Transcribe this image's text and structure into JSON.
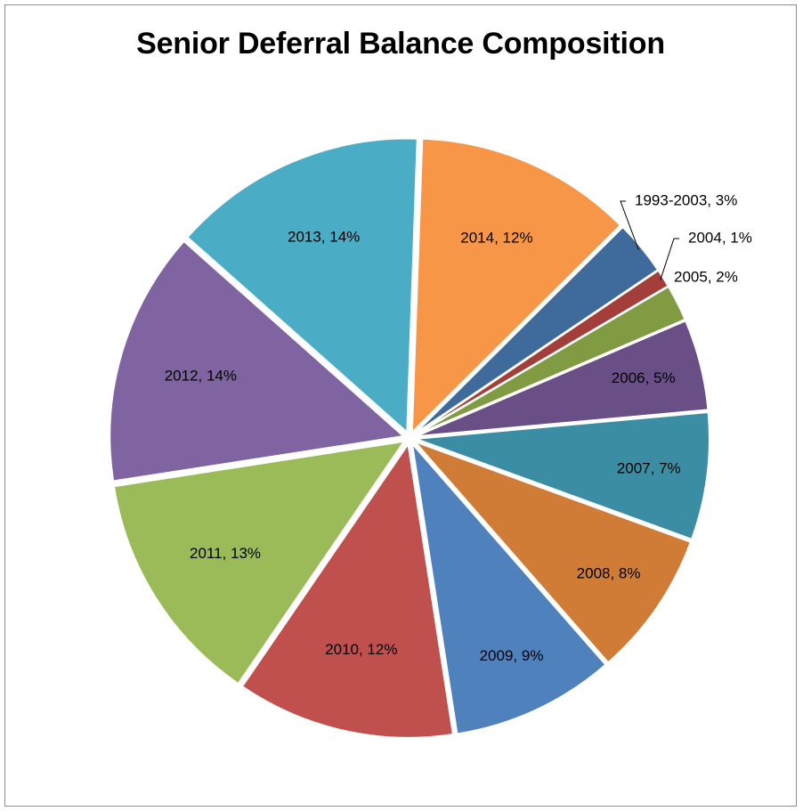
{
  "chart_data": {
    "type": "pie",
    "title": "Senior Deferral Balance Composition",
    "start_angle_deg": 2,
    "direction": "clockwise",
    "slices": [
      {
        "label": "2014",
        "value": 12,
        "display": "2014, 12%",
        "color": "#F79646"
      },
      {
        "label": "1993-2003",
        "value": 3,
        "display": "1993-2003, 3%",
        "color": "#3F6A9C"
      },
      {
        "label": "2004",
        "value": 1,
        "display": "2004, 1%",
        "color": "#A33E3B"
      },
      {
        "label": "2005",
        "value": 2,
        "display": "2005, 2%",
        "color": "#809B42"
      },
      {
        "label": "2006",
        "value": 5,
        "display": "2006, 5%",
        "color": "#6A4F87"
      },
      {
        "label": "2007",
        "value": 7,
        "display": "2007, 7%",
        "color": "#3A8DA2"
      },
      {
        "label": "2008",
        "value": 8,
        "display": "2008, 8%",
        "color": "#D07C37"
      },
      {
        "label": "2009",
        "value": 9,
        "display": "2009, 9%",
        "color": "#4F81BD"
      },
      {
        "label": "2010",
        "value": 12,
        "display": "2010, 12%",
        "color": "#C0504D"
      },
      {
        "label": "2011",
        "value": 13,
        "display": "2011, 13%",
        "color": "#9BBB59"
      },
      {
        "label": "2012",
        "value": 14,
        "display": "2012, 14%",
        "color": "#8064A2"
      },
      {
        "label": "2013",
        "value": 14,
        "display": "2013, 14%",
        "color": "#4BACC6"
      }
    ],
    "legend": "none"
  }
}
